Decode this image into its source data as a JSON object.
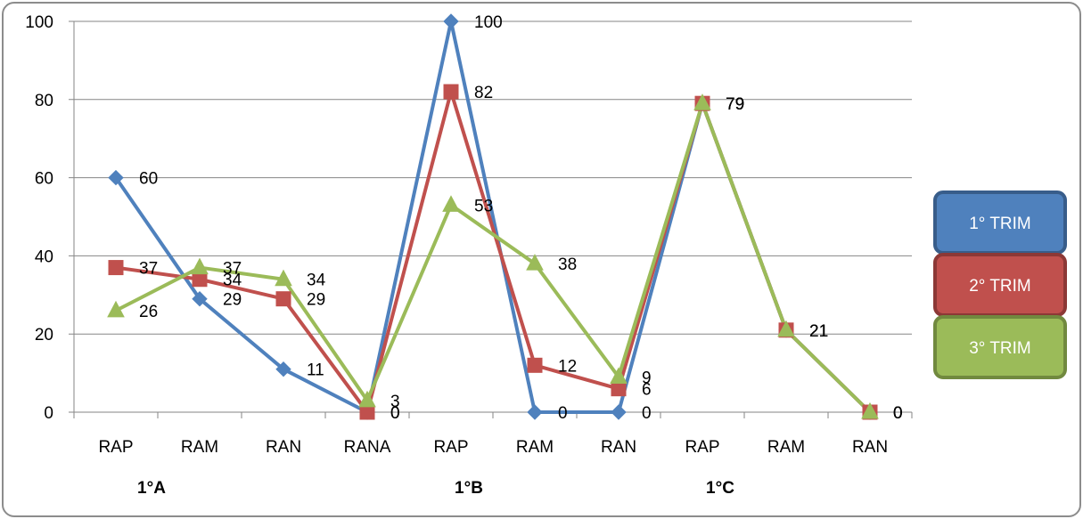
{
  "chart_data": {
    "type": "line",
    "categories": [
      "RAP",
      "RAM",
      "RAN",
      "RANA",
      "RAP",
      "RAM",
      "RAN",
      "RAP",
      "RAM",
      "RAN"
    ],
    "groups": [
      {
        "label": "1°A",
        "start": 0,
        "end": 3
      },
      {
        "label": "1°B",
        "start": 4,
        "end": 6
      },
      {
        "label": "1°C",
        "start": 7,
        "end": 9
      }
    ],
    "series": [
      {
        "name": "1° TRIM",
        "color": "#4F81BD",
        "marker": "diamond",
        "values": [
          60,
          29,
          11,
          0,
          100,
          0,
          0,
          79,
          21,
          0
        ]
      },
      {
        "name": "2° TRIM",
        "color": "#C0504D",
        "marker": "square",
        "values": [
          37,
          34,
          29,
          0,
          82,
          12,
          6,
          79,
          21,
          0
        ]
      },
      {
        "name": "3° TRIM",
        "color": "#9BBB59",
        "marker": "triangle",
        "values": [
          26,
          37,
          34,
          3,
          53,
          38,
          9,
          79,
          21,
          0
        ]
      }
    ],
    "ylim": [
      0,
      100
    ],
    "yticks": [
      0,
      20,
      40,
      60,
      80,
      100
    ],
    "grid": true,
    "legend_position": "right",
    "title": "",
    "xlabel": "",
    "ylabel": ""
  }
}
